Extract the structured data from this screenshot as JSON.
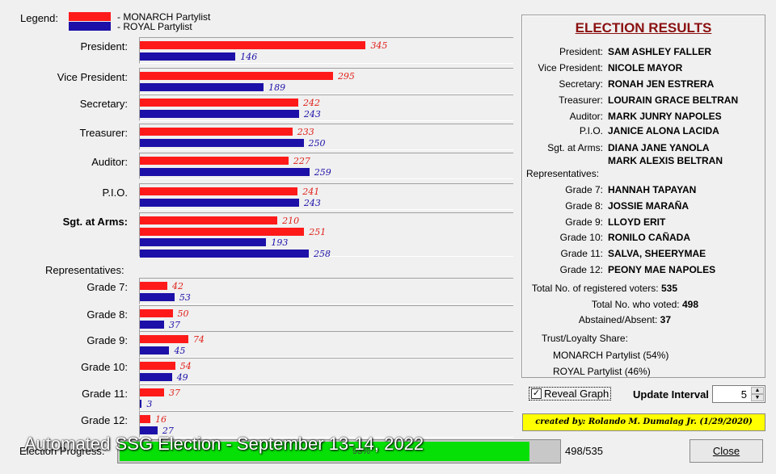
{
  "legend": {
    "label": "Legend:",
    "monarch": "- MONARCH Partylist",
    "royal": "- ROYAL Partylist",
    "colors": {
      "monarch": "#ff1a1a",
      "royal": "#1c10a8"
    }
  },
  "chart_data": {
    "type": "bar",
    "orientation": "horizontal",
    "series_names": [
      "MONARCH Partylist",
      "ROYAL Partylist"
    ],
    "rows": [
      {
        "label": "President:",
        "values": [
          [
            345,
            "red"
          ],
          [
            146,
            "blue"
          ]
        ]
      },
      {
        "label": "Vice President:",
        "values": [
          [
            295,
            "red"
          ],
          [
            189,
            "blue"
          ]
        ]
      },
      {
        "label": "Secretary:",
        "values": [
          [
            242,
            "red"
          ],
          [
            243,
            "blue"
          ]
        ]
      },
      {
        "label": "Treasurer:",
        "values": [
          [
            233,
            "red"
          ],
          [
            250,
            "blue"
          ]
        ]
      },
      {
        "label": "Auditor:",
        "values": [
          [
            227,
            "red"
          ],
          [
            259,
            "blue"
          ]
        ]
      },
      {
        "label": "P.I.O.",
        "values": [
          [
            241,
            "red"
          ],
          [
            243,
            "blue"
          ]
        ]
      },
      {
        "label": "Sgt. at Arms:",
        "bold": true,
        "values": [
          [
            210,
            "red"
          ],
          [
            251,
            "red"
          ],
          [
            193,
            "blue"
          ],
          [
            258,
            "blue"
          ]
        ]
      },
      {
        "label": "Grade 7:",
        "values": [
          [
            42,
            "red"
          ],
          [
            53,
            "blue"
          ]
        ]
      },
      {
        "label": "Grade 8:",
        "values": [
          [
            50,
            "red"
          ],
          [
            37,
            "blue"
          ]
        ]
      },
      {
        "label": "Grade 9:",
        "values": [
          [
            74,
            "red"
          ],
          [
            45,
            "blue"
          ]
        ]
      },
      {
        "label": "Grade 10:",
        "values": [
          [
            54,
            "red"
          ],
          [
            49,
            "blue"
          ]
        ]
      },
      {
        "label": "Grade 11:",
        "values": [
          [
            37,
            "red"
          ],
          [
            3,
            "blue"
          ]
        ]
      },
      {
        "label": "Grade 12:",
        "values": [
          [
            16,
            "red"
          ],
          [
            27,
            "blue"
          ]
        ]
      }
    ],
    "representatives_label": "Representatives:"
  },
  "results": {
    "title": "ELECTION RESULTS",
    "officers": [
      {
        "k": "President:",
        "v": "SAM ASHLEY FALLER"
      },
      {
        "k": "Vice President:",
        "v": "NICOLE MAYOR"
      },
      {
        "k": "Secretary:",
        "v": "RONAH JEN ESTRERA"
      },
      {
        "k": "Treasurer:",
        "v": "LOURAIN GRACE BELTRAN"
      },
      {
        "k": "Auditor:",
        "v": "MARK JUNRY NAPOLES"
      },
      {
        "k": "P.I.O.",
        "v": "JANICE ALONA LACIDA"
      },
      {
        "k": "Sgt. at Arms:",
        "v": "DIANA JANE YANOLA"
      },
      {
        "k": "",
        "v": "MARK ALEXIS BELTRAN"
      }
    ],
    "reps_label": "Representatives:",
    "reps": [
      {
        "k": "Grade 7:",
        "v": "HANNAH TAPAYAN"
      },
      {
        "k": "Grade 8:",
        "v": "JOSSIE MARAÑA"
      },
      {
        "k": "Grade 9:",
        "v": "LLOYD ERIT"
      },
      {
        "k": "Grade 10:",
        "v": "RONILO CAÑADA"
      },
      {
        "k": "Grade 11:",
        "v": "SALVA, SHEERYMAE"
      },
      {
        "k": "Grade 12:",
        "v": "PEONY MAE NAPOLES"
      }
    ],
    "stats": [
      {
        "k": "Total No. of registered voters:",
        "v": "535"
      },
      {
        "k": "Total No. who voted:",
        "v": "498"
      },
      {
        "k": "Abstained/Absent:",
        "v": "37"
      }
    ],
    "share_label": "Trust/Loyalty Share:",
    "share_monarch": "MONARCH Partylist (54%)",
    "share_royal": "ROYAL Partylist (46%)"
  },
  "controls": {
    "reveal_label": "Reveal Graph",
    "reveal_checked": true,
    "interval_label": "Update Interval",
    "interval_value": "5",
    "credit": "created by: Rolando M. Dumalag Jr.  (1/29/2020)",
    "progress_label": "Election Progress:",
    "progress_fraction": 0.93,
    "progress_percent": "93%",
    "progress_count": "498/535",
    "close_label": "Close"
  },
  "overlay_caption": "Automated SSG Election - September 13-14, 2022"
}
